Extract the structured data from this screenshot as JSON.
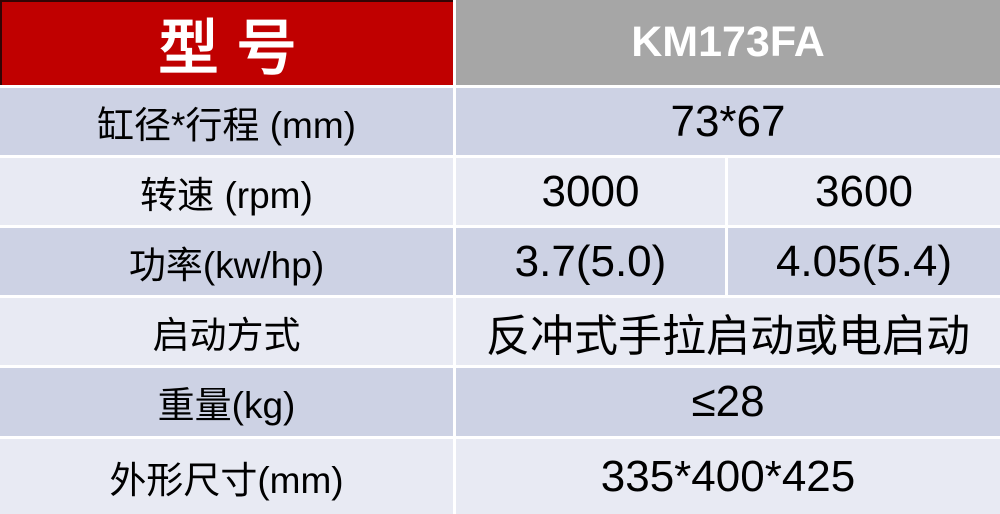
{
  "table": {
    "title": "engine specification table",
    "header": {
      "model_label": "型号",
      "model_value": "KM173FA"
    },
    "rows": [
      {
        "label": "缸径*行程 (mm)",
        "values": [
          "73*67"
        ]
      },
      {
        "label": "转速 (rpm)",
        "values": [
          "3000",
          "3600"
        ]
      },
      {
        "label": "功率(kw/hp)",
        "values": [
          "3.7(5.0)",
          "4.05(5.4)"
        ]
      },
      {
        "label": "启动方式",
        "values": [
          "反冲式手拉启动或电启动"
        ]
      },
      {
        "label": "重量(kg)",
        "values": [
          "≤28"
        ]
      },
      {
        "label": "外形尺寸(mm)",
        "values": [
          "335*400*425"
        ]
      }
    ],
    "colors": {
      "header_label_bg": "#c00000",
      "header_value_bg": "#a6a6a6",
      "band_dark": "#cdd2e4",
      "band_light": "#e8eaf3",
      "grid_gap": "#ffffff",
      "header_text": "#ffffff",
      "body_text": "#000000"
    }
  }
}
